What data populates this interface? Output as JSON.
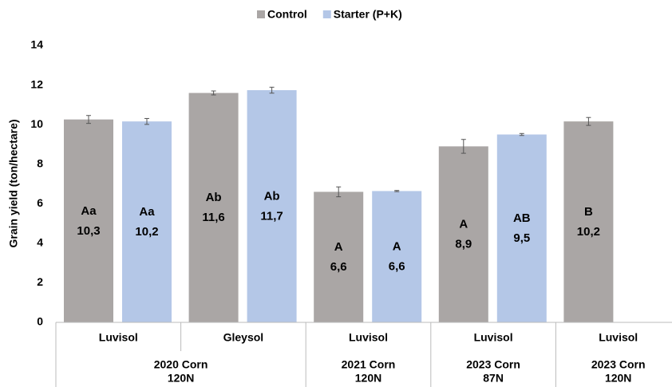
{
  "chart_data": {
    "type": "bar",
    "y_label": "Grain yield (ton/hectare)",
    "categories": [
      "Luvisol",
      "Gleysol",
      "Luvisol",
      "Luvisol",
      "Luvisol"
    ],
    "groups": [
      {
        "label": [
          "2020 Corn",
          "120N"
        ],
        "span": 2
      },
      {
        "label": [
          "2021 Corn",
          "120N"
        ],
        "span": 1
      },
      {
        "label": [
          "2023 Corn",
          "87N"
        ],
        "span": 1
      },
      {
        "label": [
          "2023 Corn",
          "120N"
        ],
        "span": 1
      }
    ],
    "series": [
      {
        "name": "Control",
        "color": "#aaa6a5",
        "values": [
          10.26,
          11.6,
          6.6,
          8.9,
          10.16
        ],
        "value_labels": [
          "10,3",
          "11,6",
          "6,6",
          "8,9",
          "10,2"
        ],
        "letters": [
          "Aa",
          "Ab",
          "A",
          "A",
          "B"
        ],
        "errors": [
          0.2,
          0.1,
          0.25,
          0.35,
          0.2
        ]
      },
      {
        "name": "Starter (P+K)",
        "color": "#b4c7e7",
        "values": [
          10.16,
          11.74,
          6.64,
          9.5,
          null
        ],
        "value_labels": [
          "10,2",
          "11,7",
          "6,6",
          "9,5",
          null
        ],
        "letters": [
          "Aa",
          "Ab",
          "A",
          "AB",
          null
        ],
        "errors": [
          0.15,
          0.15,
          0.03,
          0.05,
          null
        ]
      }
    ],
    "ylim": [
      0,
      14
    ],
    "yticks": [
      0,
      2,
      4,
      6,
      8,
      10,
      12,
      14
    ],
    "grid": false,
    "legend": "top"
  }
}
